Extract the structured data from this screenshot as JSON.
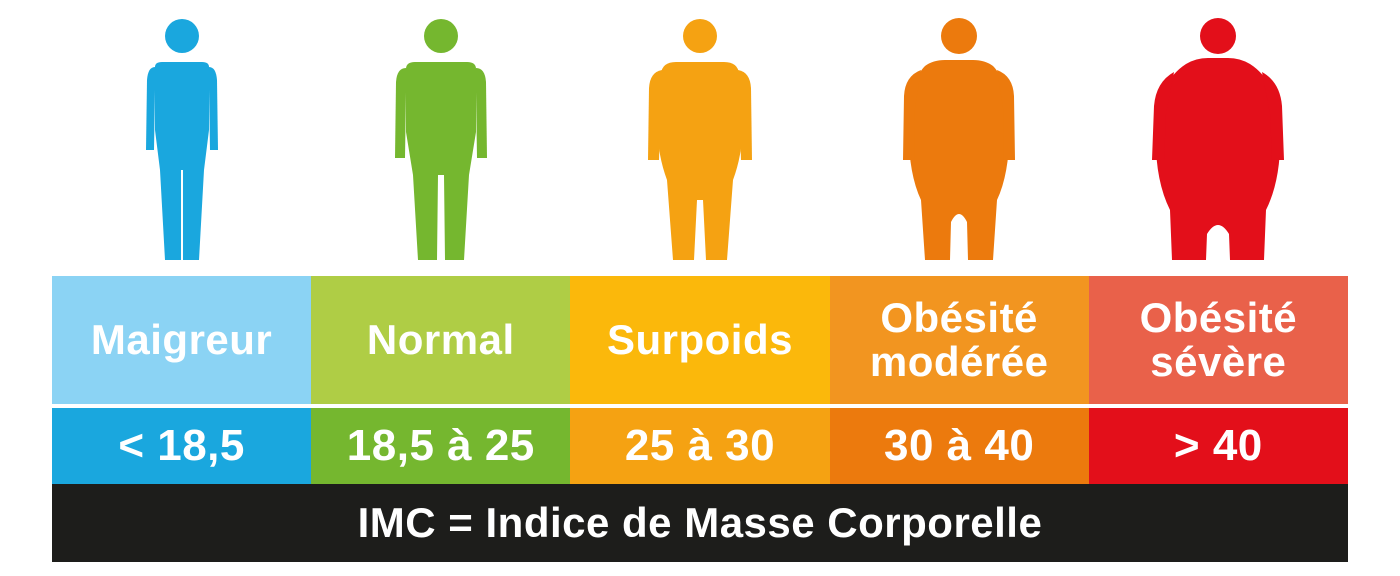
{
  "categories": [
    {
      "label_lines": [
        "Maigreur"
      ],
      "range": "< 18,5",
      "figure_color": "#1aa7de",
      "label_bg": "#8bd3f4",
      "range_bg": "#1aa7de",
      "figure_icon": "thin-person-icon"
    },
    {
      "label_lines": [
        "Normal"
      ],
      "range": "18,5 à 25",
      "figure_color": "#75b72f",
      "label_bg": "#afcd45",
      "range_bg": "#75b72f",
      "figure_icon": "normal-person-icon"
    },
    {
      "label_lines": [
        "Surpoids"
      ],
      "range": "25 à 30",
      "figure_color": "#f5a212",
      "label_bg": "#fbb80b",
      "range_bg": "#f5a212",
      "figure_icon": "overweight-person-icon"
    },
    {
      "label_lines": [
        "Obésité",
        "modérée"
      ],
      "range": "30 à 40",
      "figure_color": "#ec7a0d",
      "label_bg": "#f29520",
      "range_bg": "#ec7a0d",
      "figure_icon": "obese-person-icon"
    },
    {
      "label_lines": [
        "Obésité",
        "sévère"
      ],
      "range": "> 40",
      "figure_color": "#e30f1a",
      "label_bg": "#e9614a",
      "range_bg": "#e30f1a",
      "figure_icon": "severely-obese-person-icon"
    }
  ],
  "footer": {
    "text": "IMC = Indice de Masse Corporelle",
    "bg": "#1d1d1b"
  }
}
